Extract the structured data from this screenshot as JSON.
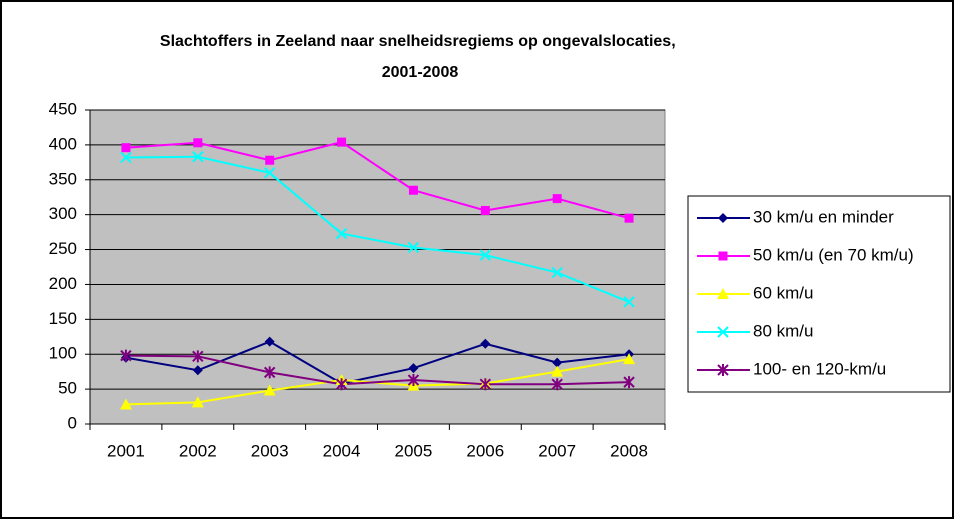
{
  "chart_data": {
    "type": "line",
    "title": "Slachtoffers in Zeeland naar snelheidsregiems op ongevalslocaties, 2001-2008",
    "categories": [
      "2001",
      "2002",
      "2003",
      "2004",
      "2005",
      "2006",
      "2007",
      "2008"
    ],
    "series": [
      {
        "name": "30 km/u en minder",
        "color": "#000080",
        "marker": "diamond",
        "values": [
          95,
          77,
          118,
          58,
          80,
          115,
          88,
          100
        ]
      },
      {
        "name": "50 km/u (en 70 km/u)",
        "color": "#ff00ff",
        "marker": "square",
        "values": [
          396,
          403,
          378,
          404,
          335,
          306,
          323,
          295
        ]
      },
      {
        "name": "60 km/u",
        "color": "#ffff00",
        "marker": "triangle",
        "values": [
          28,
          31,
          48,
          63,
          55,
          58,
          75,
          93
        ]
      },
      {
        "name": "80 km/u",
        "color": "#00ffff",
        "marker": "x",
        "values": [
          382,
          383,
          360,
          273,
          253,
          242,
          217,
          175
        ]
      },
      {
        "name": "100- en 120-km/u",
        "color": "#800080",
        "marker": "star",
        "values": [
          98,
          97,
          74,
          57,
          63,
          57,
          57,
          60
        ]
      }
    ],
    "ylim": [
      0,
      450
    ],
    "yticks": [
      0,
      50,
      100,
      150,
      200,
      250,
      300,
      350,
      400,
      450
    ],
    "grid": true,
    "legend": "right",
    "plot_background": "#c0c0c0"
  }
}
